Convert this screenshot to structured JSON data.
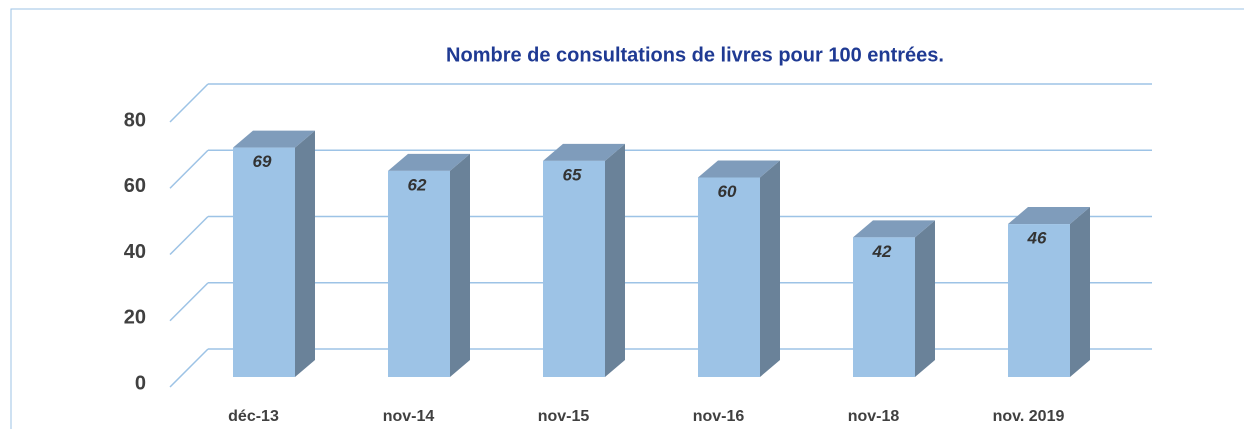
{
  "chart_data": {
    "type": "bar3d",
    "title": "Nombre de consultations de livres pour 100 entrées.",
    "categories": [
      "déc-13",
      "nov-14",
      "nov-15",
      "nov-16",
      "nov-18",
      "nov. 2019"
    ],
    "values": [
      69,
      62,
      65,
      60,
      42,
      46
    ],
    "color": "#9dc3e6",
    "ylim": [
      0,
      80
    ],
    "yticks": [
      0,
      20,
      40,
      60,
      80
    ],
    "grid": true
  }
}
